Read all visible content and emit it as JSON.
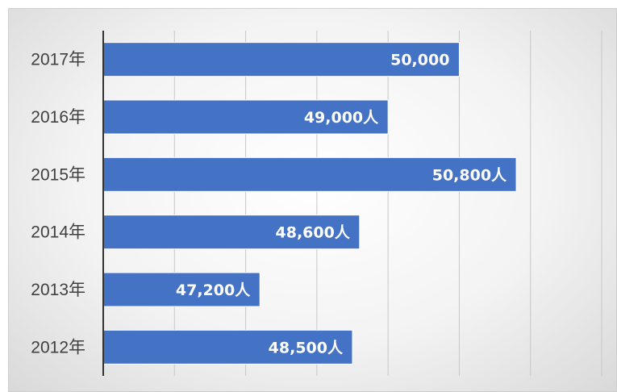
{
  "chart_data": {
    "type": "bar",
    "orientation": "horizontal",
    "categories": [
      "2017年",
      "2016年",
      "2015年",
      "2014年",
      "2013年",
      "2012年"
    ],
    "values": [
      50000,
      49000,
      50800,
      48600,
      47200,
      48500
    ],
    "data_labels": [
      "50,000",
      "49,000人",
      "50,800人",
      "48,600人",
      "47,200人",
      "48,500人"
    ],
    "xlim": [
      45000,
      52000
    ],
    "grid": true,
    "legend": "none",
    "colors": {
      "bar": "#4472C4",
      "bar_edge": "#ffffff",
      "label": "#ffffff"
    }
  }
}
